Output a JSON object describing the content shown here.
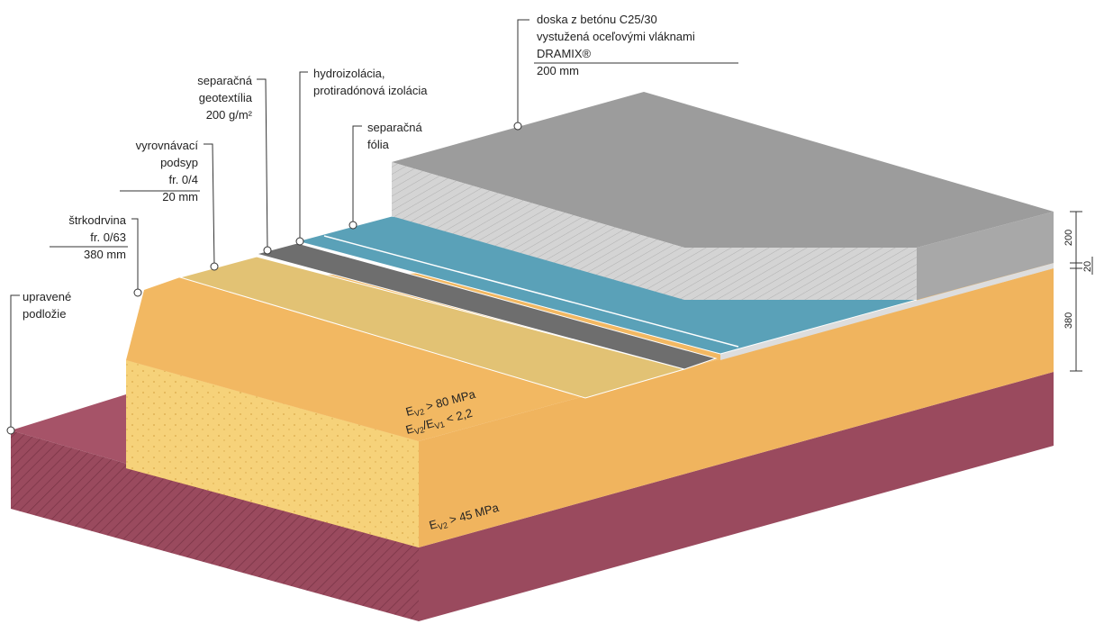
{
  "labels": [
    {
      "lines": [
        "doska z betónu C25/30",
        "vystužená oceľovými vláknami",
        "DRAMIX®",
        "200 mm"
      ]
    },
    {
      "lines": [
        "hydroizolácia,",
        "protiradónová izolácia"
      ]
    },
    {
      "lines": [
        "separačná",
        "geotextília",
        "200 g/m²"
      ]
    },
    {
      "lines": [
        "separačná",
        "fólia"
      ]
    },
    {
      "lines": [
        "vyrovnávací",
        "podsyp",
        "fr. 0/4",
        "20 mm"
      ]
    },
    {
      "lines": [
        "štrkodrvina",
        "fr. 0/63",
        "380 mm"
      ]
    },
    {
      "lines": [
        "upravené",
        "podložie"
      ]
    }
  ],
  "moduli": [
    {
      "parts": [
        "E",
        "V2",
        " > 80 MPa"
      ]
    },
    {
      "parts": [
        "E",
        "V2",
        "/E",
        "V1",
        " < 2,2"
      ]
    },
    {
      "parts": [
        "E",
        "V2",
        " > 45 MPa"
      ]
    }
  ],
  "dimensions": [
    "200",
    "20",
    "380"
  ]
}
